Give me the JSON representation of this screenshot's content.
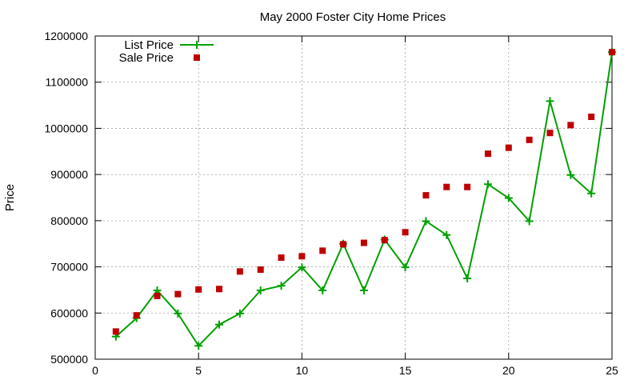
{
  "chart_data": {
    "type": "line",
    "title": "May 2000 Foster City Home Prices",
    "xlabel": "",
    "ylabel": "Price",
    "xlim": [
      0,
      25
    ],
    "ylim": [
      500000,
      1200000
    ],
    "xticks": [
      0,
      5,
      10,
      15,
      20,
      25
    ],
    "yticks": [
      500000,
      600000,
      700000,
      800000,
      900000,
      1000000,
      1100000,
      1200000
    ],
    "grid": true,
    "legend_position": "top-left",
    "series": [
      {
        "name": "List Price",
        "type": "line",
        "color": "#00a000",
        "marker": "plus",
        "x": [
          1,
          2,
          3,
          4,
          5,
          6,
          7,
          8,
          9,
          10,
          11,
          12,
          13,
          14,
          15,
          16,
          17,
          18,
          19,
          20,
          21,
          22,
          23,
          24,
          25
        ],
        "values": [
          549000,
          589000,
          649000,
          599000,
          529000,
          575000,
          599000,
          649000,
          659000,
          699000,
          649000,
          750000,
          649000,
          759000,
          699000,
          799000,
          769000,
          675000,
          879000,
          849000,
          799000,
          1059000,
          899000,
          859000,
          1165000
        ]
      },
      {
        "name": "Sale Price",
        "type": "scatter",
        "color": "#c00000",
        "marker": "square",
        "x": [
          1,
          2,
          3,
          4,
          5,
          6,
          7,
          8,
          9,
          10,
          11,
          12,
          13,
          14,
          15,
          16,
          17,
          18,
          19,
          20,
          21,
          22,
          23,
          24,
          25
        ],
        "values": [
          560000,
          595000,
          637000,
          641000,
          651000,
          652000,
          690000,
          694000,
          720000,
          723000,
          735000,
          749000,
          752000,
          758000,
          775000,
          855000,
          873000,
          873000,
          945000,
          958000,
          975000,
          990000,
          1007000,
          1025000,
          1165000
        ]
      }
    ]
  }
}
